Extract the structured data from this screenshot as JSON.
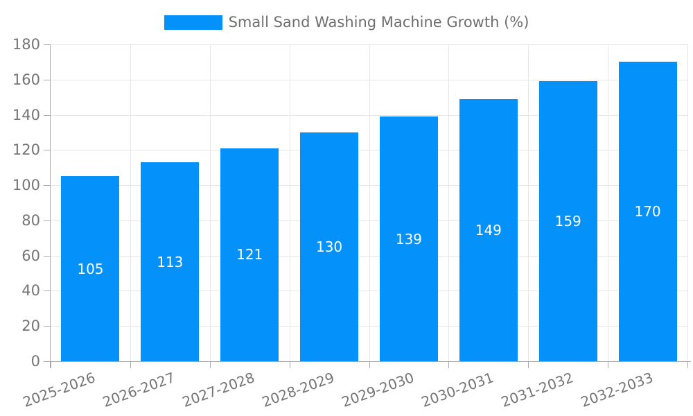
{
  "legend": {
    "label": "Small Sand Washing Machine Growth (%)"
  },
  "colors": {
    "bar": "#0591fa",
    "grid": "#e6e6e6",
    "axis": "#aaaaaa",
    "axis_text": "#757575",
    "legend_text": "#6e6e6e",
    "value_label": "#ffffff",
    "background": "#ffffff"
  },
  "chart_data": {
    "type": "bar",
    "title": "Small Sand Washing Machine Growth (%)",
    "categories": [
      "2025-2026",
      "2026-2027",
      "2027-2028",
      "2028-2029",
      "2029-2030",
      "2030-2031",
      "2031-2032",
      "2032-2033"
    ],
    "values": [
      105,
      113,
      121,
      130,
      139,
      149,
      159,
      170
    ],
    "xlabel": "",
    "ylabel": "",
    "ylim": [
      0,
      180
    ],
    "ytick_step": 20,
    "yticks": [
      0,
      20,
      40,
      60,
      80,
      100,
      120,
      140,
      160,
      180
    ],
    "grid": true,
    "legend_position": "top",
    "bar_label_position": "center",
    "x_label_rotation": -20
  }
}
